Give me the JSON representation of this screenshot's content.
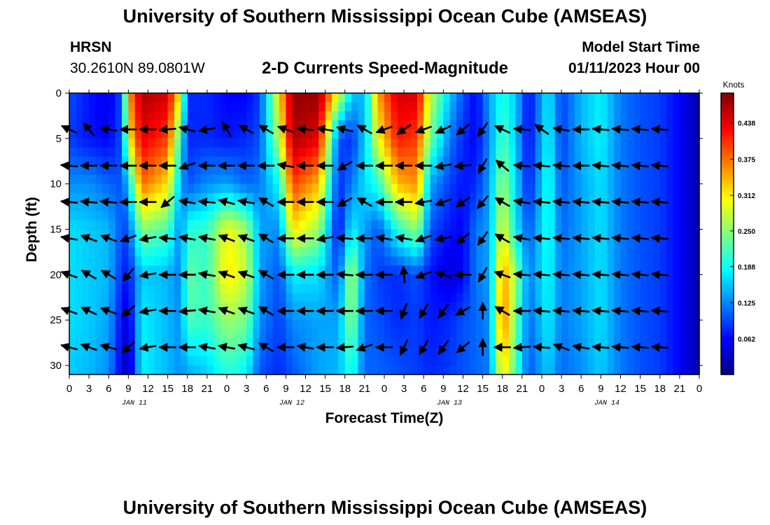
{
  "header": {
    "title": "University of Southern Mississippi Ocean Cube (AMSEAS)",
    "station": "HRSN",
    "coords": "30.2610N  89.0801W",
    "plot_title": "2-D Currents Speed-Magnitude",
    "model_start_label": "Model Start Time",
    "model_start_value": "01/11/2023 Hour 00",
    "footer_title": "University of Southern Mississippi Ocean Cube (AMSEAS)"
  },
  "chart_data": {
    "type": "heatmap",
    "title": "2-D Currents Speed-Magnitude",
    "xlabel": "Forecast Time(Z)",
    "ylabel": "Depth (ft)",
    "units": "Knots",
    "x_ticks": [
      "0",
      "3",
      "6",
      "9",
      "12",
      "15",
      "18",
      "21",
      "0",
      "3",
      "6",
      "9",
      "12",
      "15",
      "18",
      "21",
      "0",
      "3",
      "6",
      "9",
      "12",
      "15",
      "18",
      "21",
      "0",
      "3",
      "6",
      "9",
      "12",
      "15",
      "18",
      "21",
      "0"
    ],
    "x_range_hours": [
      0,
      96
    ],
    "day_labels": [
      {
        "label": "JAN 11",
        "hour": 9.5
      },
      {
        "label": "JAN 12",
        "hour": 33.5
      },
      {
        "label": "JAN 13",
        "hour": 57.5
      },
      {
        "label": "JAN 14",
        "hour": 81.5
      }
    ],
    "y_ticks": [
      "0",
      "5",
      "10",
      "15",
      "20",
      "25",
      "30"
    ],
    "y_range_ft": [
      0,
      31
    ],
    "colorbar": {
      "labels": [
        "0.438",
        "0.375",
        "0.312",
        "0.250",
        "0.188",
        "0.125",
        "0.062"
      ],
      "values": [
        0.438,
        0.375,
        0.312,
        0.25,
        0.188,
        0.125,
        0.062
      ],
      "min": 0.0,
      "max": 0.49
    },
    "speed_field_anchors": [
      {
        "hour": 0,
        "profile": [
          0.1,
          0.09,
          0.13,
          0.17,
          0.17,
          0.17,
          0.16
        ]
      },
      {
        "hour": 3,
        "profile": [
          0.07,
          0.07,
          0.13,
          0.16,
          0.16,
          0.16,
          0.15
        ]
      },
      {
        "hour": 6,
        "profile": [
          0.05,
          0.06,
          0.11,
          0.15,
          0.15,
          0.14,
          0.13
        ]
      },
      {
        "hour": 8,
        "profile": [
          0.1,
          0.1,
          0.1,
          0.1,
          0.08,
          0.06,
          0.05
        ]
      },
      {
        "hour": 9,
        "profile": [
          0.35,
          0.3,
          0.16,
          0.1,
          0.07,
          0.04,
          0.02
        ]
      },
      {
        "hour": 11,
        "profile": [
          0.47,
          0.44,
          0.38,
          0.25,
          0.16,
          0.18,
          0.18
        ]
      },
      {
        "hour": 15,
        "profile": [
          0.45,
          0.4,
          0.32,
          0.22,
          0.15,
          0.15,
          0.15
        ]
      },
      {
        "hour": 17,
        "profile": [
          0.3,
          0.2,
          0.14,
          0.12,
          0.12,
          0.13,
          0.13
        ]
      },
      {
        "hour": 18,
        "profile": [
          0.08,
          0.08,
          0.1,
          0.2,
          0.23,
          0.22,
          0.14
        ]
      },
      {
        "hour": 21,
        "profile": [
          0.08,
          0.08,
          0.13,
          0.21,
          0.21,
          0.21,
          0.16
        ]
      },
      {
        "hour": 24,
        "profile": [
          0.06,
          0.07,
          0.14,
          0.3,
          0.32,
          0.26,
          0.2
        ]
      },
      {
        "hour": 27,
        "profile": [
          0.06,
          0.08,
          0.11,
          0.26,
          0.28,
          0.24,
          0.18
        ]
      },
      {
        "hour": 29,
        "profile": [
          0.09,
          0.1,
          0.12,
          0.14,
          0.14,
          0.13,
          0.1
        ]
      },
      {
        "hour": 32,
        "profile": [
          0.32,
          0.28,
          0.19,
          0.13,
          0.1,
          0.09,
          0.08
        ]
      },
      {
        "hour": 34,
        "profile": [
          0.48,
          0.47,
          0.4,
          0.32,
          0.18,
          0.13,
          0.1
        ]
      },
      {
        "hour": 38,
        "profile": [
          0.48,
          0.44,
          0.34,
          0.26,
          0.17,
          0.14,
          0.14
        ]
      },
      {
        "hour": 41,
        "profile": [
          0.3,
          0.1,
          0.08,
          0.06,
          0.1,
          0.14,
          0.15
        ]
      },
      {
        "hour": 43,
        "profile": [
          0.16,
          0.08,
          0.12,
          0.18,
          0.28,
          0.26,
          0.2
        ]
      },
      {
        "hour": 45,
        "profile": [
          0.15,
          0.16,
          0.17,
          0.14,
          0.12,
          0.11,
          0.11
        ]
      },
      {
        "hour": 47,
        "profile": [
          0.35,
          0.3,
          0.2,
          0.1,
          0.09,
          0.1,
          0.11
        ]
      },
      {
        "hour": 50,
        "profile": [
          0.45,
          0.42,
          0.34,
          0.2,
          0.08,
          0.08,
          0.1
        ]
      },
      {
        "hour": 53,
        "profile": [
          0.45,
          0.4,
          0.36,
          0.26,
          0.1,
          0.09,
          0.09
        ]
      },
      {
        "hour": 55,
        "profile": [
          0.28,
          0.24,
          0.14,
          0.1,
          0.07,
          0.07,
          0.08
        ]
      },
      {
        "hour": 58,
        "profile": [
          0.16,
          0.12,
          0.09,
          0.07,
          0.04,
          0.08,
          0.09
        ]
      },
      {
        "hour": 60,
        "profile": [
          0.1,
          0.08,
          0.07,
          0.06,
          0.06,
          0.1,
          0.1
        ]
      },
      {
        "hour": 62,
        "profile": [
          0.06,
          0.06,
          0.08,
          0.12,
          0.12,
          0.11,
          0.11
        ]
      },
      {
        "hour": 64,
        "profile": [
          0.14,
          0.13,
          0.14,
          0.14,
          0.14,
          0.13,
          0.12
        ]
      },
      {
        "hour": 66,
        "profile": [
          0.2,
          0.22,
          0.26,
          0.3,
          0.36,
          0.38,
          0.32
        ]
      },
      {
        "hour": 68,
        "profile": [
          0.16,
          0.16,
          0.17,
          0.18,
          0.26,
          0.24,
          0.22
        ]
      },
      {
        "hour": 70,
        "profile": [
          0.06,
          0.06,
          0.07,
          0.1,
          0.12,
          0.11,
          0.1
        ]
      },
      {
        "hour": 73,
        "profile": [
          0.18,
          0.19,
          0.2,
          0.2,
          0.19,
          0.18,
          0.16
        ]
      },
      {
        "hour": 75,
        "profile": [
          0.09,
          0.09,
          0.1,
          0.11,
          0.12,
          0.12,
          0.11
        ]
      },
      {
        "hour": 78,
        "profile": [
          0.15,
          0.15,
          0.14,
          0.14,
          0.14,
          0.14,
          0.13
        ]
      },
      {
        "hour": 81,
        "profile": [
          0.18,
          0.18,
          0.17,
          0.17,
          0.17,
          0.17,
          0.16
        ]
      },
      {
        "hour": 84,
        "profile": [
          0.12,
          0.12,
          0.12,
          0.12,
          0.12,
          0.12,
          0.12
        ]
      },
      {
        "hour": 87,
        "profile": [
          0.1,
          0.1,
          0.1,
          0.1,
          0.1,
          0.1,
          0.1
        ]
      },
      {
        "hour": 90,
        "profile": [
          0.09,
          0.09,
          0.09,
          0.09,
          0.09,
          0.09,
          0.09
        ]
      },
      {
        "hour": 93,
        "profile": [
          0.06,
          0.06,
          0.06,
          0.06,
          0.06,
          0.06,
          0.06
        ]
      },
      {
        "hour": 96,
        "profile": [
          0.02,
          0.02,
          0.02,
          0.02,
          0.02,
          0.02,
          0.02
        ]
      }
    ],
    "profile_depths_ft": [
      0,
      5,
      10,
      15,
      20,
      25,
      31
    ],
    "vector_depths_ft": [
      4,
      8,
      12,
      16,
      20,
      24,
      28
    ],
    "vector_directions_deg": [
      {
        "hour": 0,
        "dirs": [
          155,
          175,
          175,
          170,
          160,
          160,
          165
        ]
      },
      {
        "hour": 3,
        "dirs": [
          130,
          180,
          175,
          160,
          150,
          155,
          160
        ]
      },
      {
        "hour": 6,
        "dirs": [
          170,
          180,
          175,
          160,
          150,
          160,
          165
        ]
      },
      {
        "hour": 9,
        "dirs": [
          180,
          180,
          180,
          200,
          230,
          220,
          220
        ]
      },
      {
        "hour": 12,
        "dirs": [
          180,
          180,
          180,
          190,
          190,
          190,
          190
        ]
      },
      {
        "hour": 15,
        "dirs": [
          185,
          180,
          220,
          175,
          180,
          180,
          180
        ]
      },
      {
        "hour": 18,
        "dirs": [
          165,
          200,
          170,
          170,
          180,
          185,
          180
        ]
      },
      {
        "hour": 21,
        "dirs": [
          190,
          180,
          175,
          170,
          170,
          170,
          170
        ]
      },
      {
        "hour": 24,
        "dirs": [
          120,
          180,
          165,
          160,
          160,
          160,
          170
        ]
      },
      {
        "hour": 27,
        "dirs": [
          150,
          180,
          170,
          160,
          160,
          160,
          165
        ]
      },
      {
        "hour": 30,
        "dirs": [
          150,
          180,
          150,
          150,
          150,
          150,
          150
        ]
      },
      {
        "hour": 33,
        "dirs": [
          160,
          170,
          180,
          180,
          180,
          180,
          180
        ]
      },
      {
        "hour": 36,
        "dirs": [
          175,
          180,
          180,
          180,
          180,
          180,
          170
        ]
      },
      {
        "hour": 39,
        "dirs": [
          170,
          180,
          180,
          190,
          180,
          180,
          180
        ]
      },
      {
        "hour": 42,
        "dirs": [
          165,
          210,
          210,
          175,
          175,
          180,
          185
        ]
      },
      {
        "hour": 45,
        "dirs": [
          150,
          180,
          150,
          180,
          180,
          180,
          200
        ]
      },
      {
        "hour": 48,
        "dirs": [
          200,
          180,
          180,
          170,
          180,
          180,
          180
        ]
      },
      {
        "hour": 51,
        "dirs": [
          215,
          180,
          180,
          170,
          95,
          250,
          245
        ]
      },
      {
        "hour": 54,
        "dirs": [
          200,
          180,
          190,
          200,
          200,
          240,
          240
        ]
      },
      {
        "hour": 57,
        "dirs": [
          205,
          190,
          200,
          190,
          160,
          235,
          235
        ]
      },
      {
        "hour": 60,
        "dirs": [
          220,
          185,
          215,
          220,
          180,
          210,
          220
        ]
      },
      {
        "hour": 63,
        "dirs": [
          235,
          240,
          230,
          235,
          240,
          90,
          90
        ]
      },
      {
        "hour": 66,
        "dirs": [
          155,
          140,
          150,
          150,
          160,
          150,
          180
        ]
      },
      {
        "hour": 69,
        "dirs": [
          175,
          175,
          170,
          170,
          175,
          180,
          185
        ]
      },
      {
        "hour": 72,
        "dirs": [
          145,
          175,
          175,
          175,
          175,
          175,
          175
        ]
      },
      {
        "hour": 75,
        "dirs": [
          170,
          175,
          175,
          175,
          175,
          175,
          160
        ]
      },
      {
        "hour": 78,
        "dirs": [
          180,
          180,
          175,
          175,
          175,
          175,
          170
        ]
      },
      {
        "hour": 81,
        "dirs": [
          175,
          175,
          175,
          175,
          175,
          175,
          175
        ]
      },
      {
        "hour": 84,
        "dirs": [
          175,
          175,
          175,
          175,
          175,
          175,
          175
        ]
      },
      {
        "hour": 87,
        "dirs": [
          175,
          175,
          175,
          175,
          175,
          175,
          175
        ]
      },
      {
        "hour": 90,
        "dirs": [
          175,
          175,
          175,
          175,
          175,
          175,
          175
        ]
      }
    ]
  }
}
